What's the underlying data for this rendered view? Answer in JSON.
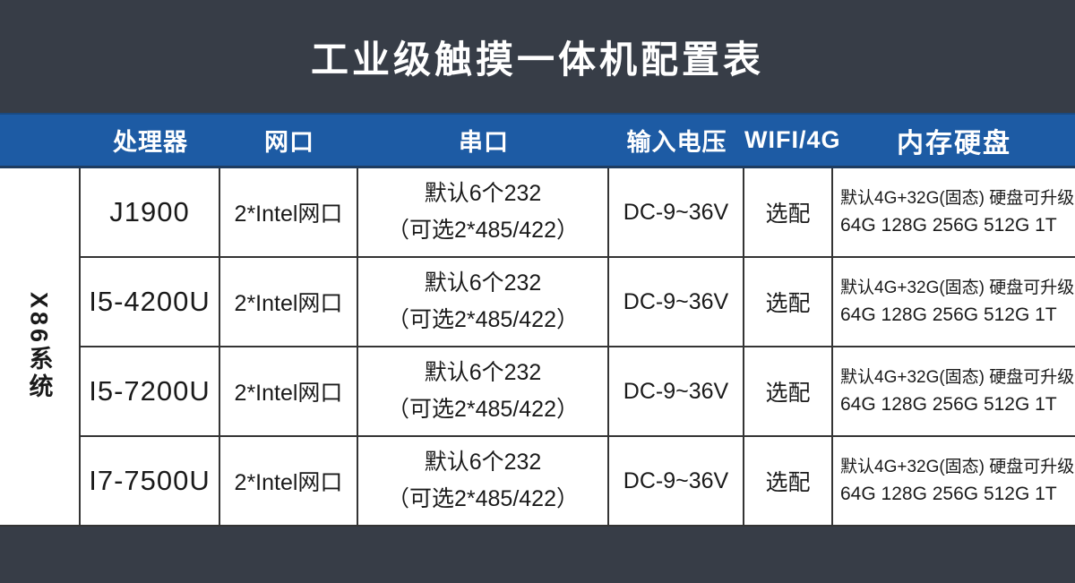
{
  "page": {
    "title": "工业级触摸一体机配置表"
  },
  "colors": {
    "band_charcoal": "#373d47",
    "header_blue": "#1d5ba4",
    "header_blue_border_top": "#1a4a82",
    "header_blue_border_bottom": "#1e3c60",
    "table_border": "#343434",
    "text_dark": "#1a1a1a",
    "text_white": "#ffffff"
  },
  "table": {
    "row_group_label": "X86系统",
    "columns": [
      "处理器",
      "网口",
      "串口",
      "输入电压",
      "WIFI/4G",
      "内存硬盘"
    ],
    "rows": [
      {
        "processor": "J1900",
        "network": "2*Intel网口",
        "serial_line1": "默认6个232",
        "serial_line2": "（可选2*485/422）",
        "voltage": "DC-9~36V",
        "wifi": "选配",
        "memory_line1": "默认4G+32G(固态) 硬盘可升级",
        "memory_line2": "64G 128G  256G  512G 1T"
      },
      {
        "processor": "I5-4200U",
        "network": "2*Intel网口",
        "serial_line1": "默认6个232",
        "serial_line2": "（可选2*485/422）",
        "voltage": "DC-9~36V",
        "wifi": "选配",
        "memory_line1": "默认4G+32G(固态) 硬盘可升级",
        "memory_line2": "64G 128G  256G  512G 1T"
      },
      {
        "processor": "I5-7200U",
        "network": "2*Intel网口",
        "serial_line1": "默认6个232",
        "serial_line2": "（可选2*485/422）",
        "voltage": "DC-9~36V",
        "wifi": "选配",
        "memory_line1": "默认4G+32G(固态) 硬盘可升级",
        "memory_line2": "64G 128G  256G  512G 1T"
      },
      {
        "processor": "I7-7500U",
        "network": "2*Intel网口",
        "serial_line1": "默认6个232",
        "serial_line2": "（可选2*485/422）",
        "voltage": "DC-9~36V",
        "wifi": "选配",
        "memory_line1": "默认4G+32G(固态) 硬盘可升级",
        "memory_line2": "64G 128G  256G  512G 1T"
      }
    ]
  }
}
